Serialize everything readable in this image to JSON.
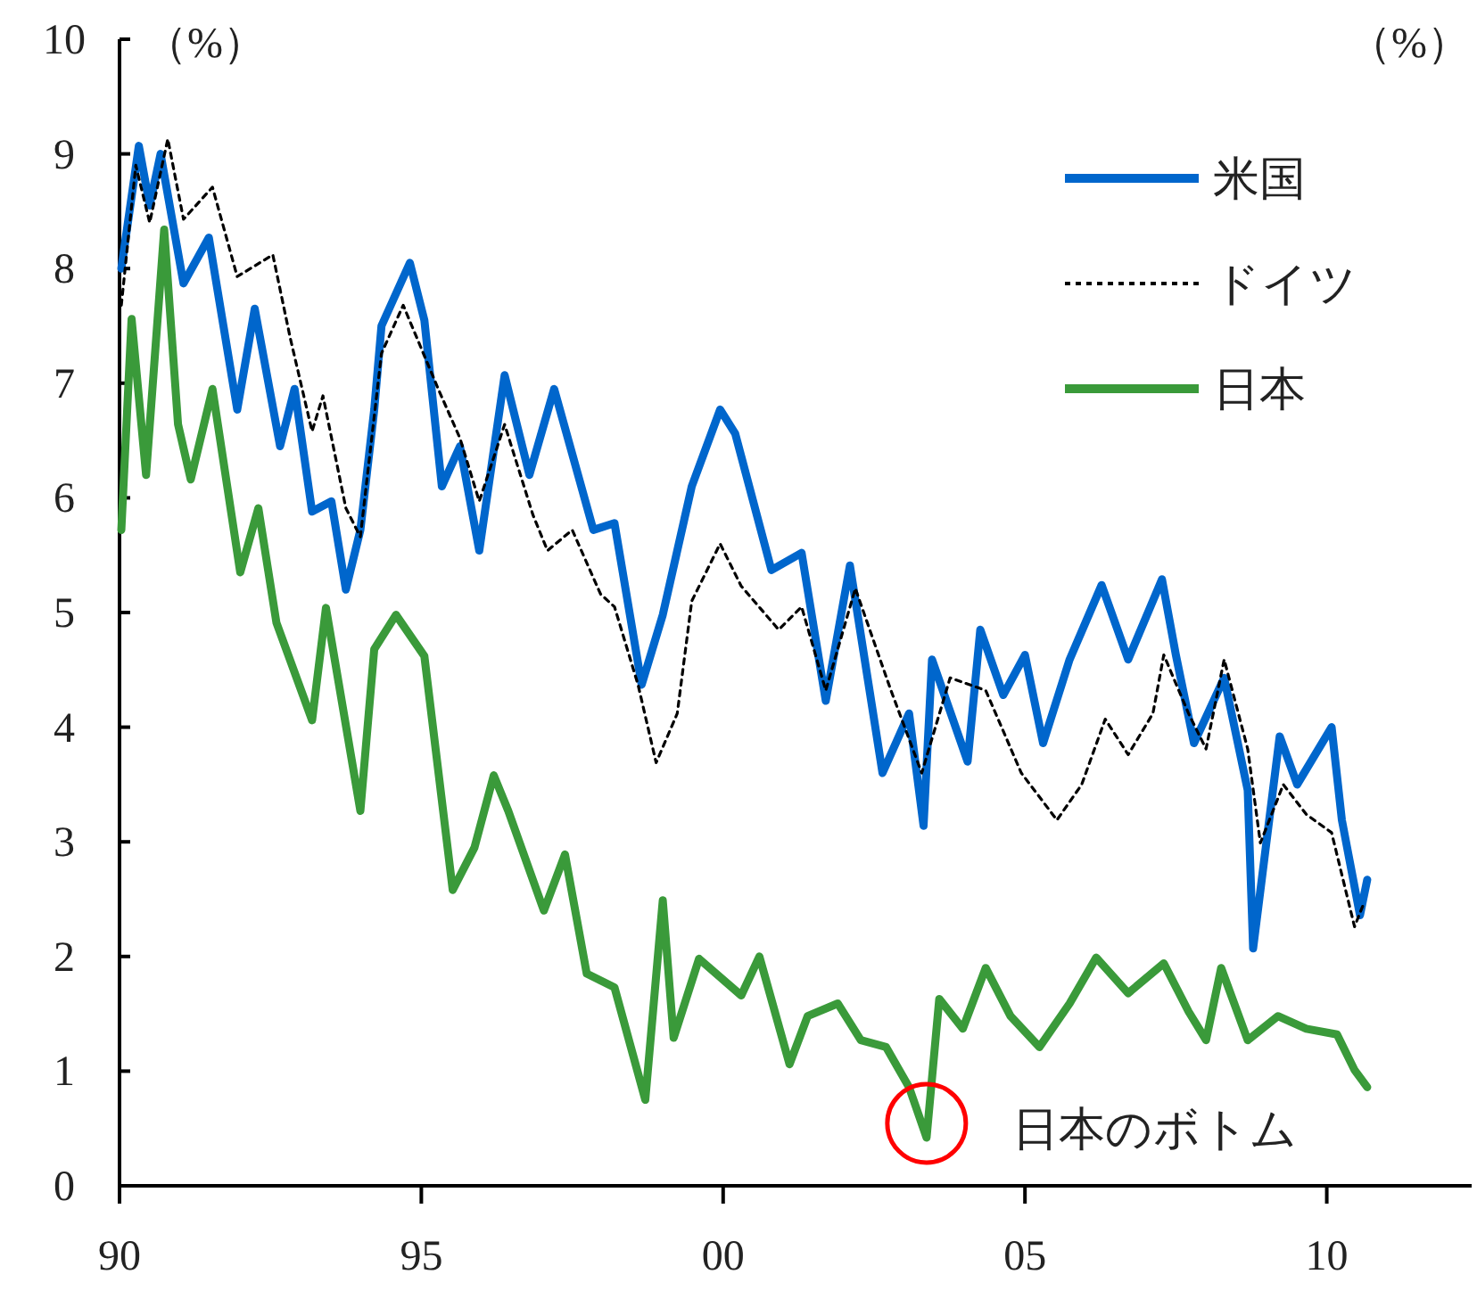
{
  "chart_data": {
    "type": "line",
    "ylabel": "（%）",
    "y2label": "（%）",
    "xlim": [
      1990,
      2012.4
    ],
    "xticks": [
      {
        "value": 1990,
        "label": "90"
      },
      {
        "value": 1995,
        "label": "95"
      },
      {
        "value": 2000,
        "label": "00"
      },
      {
        "value": 2005,
        "label": "05"
      },
      {
        "value": 2010,
        "label": "10"
      }
    ],
    "ylim": [
      0,
      10
    ],
    "yticks": [
      0,
      1,
      2,
      3,
      4,
      5,
      6,
      7,
      8,
      9,
      10
    ],
    "grid": false,
    "legend": "top right",
    "series": [
      {
        "name": "米国",
        "color": "#0066cc",
        "line_style": "solid",
        "x": [
          1990.03,
          1990.32,
          1990.5,
          1990.68,
          1991.06,
          1991.48,
          1991.95,
          1992.24,
          1992.66,
          1992.9,
          1993.19,
          1993.51,
          1993.75,
          1993.99,
          1994.22,
          1994.34,
          1994.81,
          1995.05,
          1995.34,
          1995.64,
          1995.96,
          1996.38,
          1996.79,
          1997.2,
          1997.85,
          1998.2,
          1998.65,
          1999.0,
          1999.48,
          1999.95,
          2000.2,
          2000.8,
          2001.3,
          2001.7,
          2002.1,
          2002.64,
          2003.08,
          2003.32,
          2003.46,
          2004.05,
          2004.26,
          2004.64,
          2005.0,
          2005.3,
          2005.74,
          2006.27,
          2006.71,
          2007.27,
          2007.5,
          2007.8,
          2008.3,
          2008.69,
          2008.78,
          2009.22,
          2009.51,
          2010.08,
          2010.25,
          2010.55,
          2010.67
        ],
        "values": [
          8.0,
          9.07,
          8.55,
          9.0,
          7.87,
          8.27,
          6.77,
          7.65,
          6.45,
          6.95,
          5.88,
          5.97,
          5.2,
          5.72,
          6.77,
          7.5,
          8.05,
          7.55,
          6.1,
          6.45,
          5.54,
          7.07,
          6.2,
          6.95,
          5.72,
          5.78,
          4.37,
          4.98,
          6.1,
          6.77,
          6.56,
          5.37,
          5.52,
          4.23,
          5.41,
          3.6,
          4.12,
          3.14,
          4.59,
          3.7,
          4.85,
          4.28,
          4.63,
          3.86,
          4.59,
          5.24,
          4.59,
          5.29,
          4.63,
          3.86,
          4.43,
          3.45,
          2.07,
          3.92,
          3.5,
          4.0,
          3.19,
          2.36,
          2.67
        ]
      },
      {
        "name": "ドイツ",
        "color": "#000000",
        "line_style": "dotted",
        "x": [
          1990.03,
          1990.27,
          1990.5,
          1990.8,
          1991.06,
          1991.54,
          1991.95,
          1992.54,
          1992.83,
          1993.19,
          1993.37,
          1993.75,
          1993.99,
          1994.34,
          1994.7,
          1994.93,
          1995.28,
          1995.64,
          1995.96,
          1996.38,
          1996.85,
          1997.09,
          1997.5,
          1997.97,
          1998.2,
          1998.59,
          1998.89,
          1999.24,
          1999.48,
          1999.95,
          2000.3,
          2000.92,
          2001.3,
          2001.7,
          2002.19,
          2002.78,
          2003.29,
          2003.76,
          2004.35,
          2004.94,
          2005.53,
          2005.94,
          2006.33,
          2006.71,
          2007.12,
          2007.3,
          2007.71,
          2008.0,
          2008.3,
          2008.69,
          2008.9,
          2009.28,
          2009.66,
          2010.08,
          2010.46,
          2010.61
        ],
        "values": [
          7.68,
          8.9,
          8.4,
          9.13,
          8.43,
          8.71,
          7.93,
          8.12,
          7.39,
          6.58,
          6.89,
          5.91,
          5.66,
          7.26,
          7.68,
          7.39,
          6.95,
          6.52,
          5.97,
          6.64,
          5.85,
          5.54,
          5.72,
          5.16,
          5.05,
          4.37,
          3.69,
          4.12,
          5.1,
          5.6,
          5.23,
          4.85,
          5.05,
          4.32,
          5.21,
          4.32,
          3.6,
          4.43,
          4.32,
          3.6,
          3.19,
          3.5,
          4.07,
          3.76,
          4.12,
          4.63,
          4.12,
          3.81,
          4.59,
          3.81,
          2.99,
          3.5,
          3.24,
          3.08,
          2.26,
          2.46
        ]
      },
      {
        "name": "日本",
        "color": "#3a9a3a",
        "line_style": "solid",
        "x": [
          1990.03,
          1990.2,
          1990.44,
          1990.74,
          1990.97,
          1991.18,
          1991.54,
          1992.0,
          1992.3,
          1992.6,
          1993.19,
          1993.42,
          1993.99,
          1994.22,
          1994.58,
          1995.05,
          1995.52,
          1995.88,
          1996.2,
          1996.44,
          1997.03,
          1997.38,
          1997.74,
          1998.2,
          1998.71,
          1999.0,
          1999.18,
          1999.6,
          2000.3,
          2000.6,
          2001.1,
          2001.4,
          2001.9,
          2002.28,
          2002.7,
          2003.08,
          2003.37,
          2003.58,
          2003.97,
          2004.35,
          2004.76,
          2005.24,
          2005.74,
          2006.18,
          2006.71,
          2007.3,
          2007.71,
          2008.0,
          2008.25,
          2008.69,
          2009.19,
          2009.66,
          2010.17,
          2010.46,
          2010.67
        ],
        "values": [
          5.72,
          7.56,
          6.2,
          8.34,
          6.64,
          6.16,
          6.95,
          5.35,
          5.91,
          4.91,
          4.06,
          5.04,
          3.27,
          4.68,
          4.98,
          4.62,
          2.58,
          2.95,
          3.58,
          3.27,
          2.4,
          2.89,
          1.85,
          1.73,
          0.75,
          2.49,
          1.29,
          1.98,
          1.66,
          2.0,
          1.06,
          1.48,
          1.59,
          1.27,
          1.21,
          0.86,
          0.42,
          1.63,
          1.37,
          1.9,
          1.48,
          1.21,
          1.59,
          1.99,
          1.68,
          1.94,
          1.52,
          1.27,
          1.9,
          1.27,
          1.48,
          1.37,
          1.32,
          1.01,
          0.86
        ]
      }
    ],
    "annotations": [
      {
        "text": "日本のボトム",
        "x": 2003.37,
        "y": 0.42
      }
    ]
  }
}
